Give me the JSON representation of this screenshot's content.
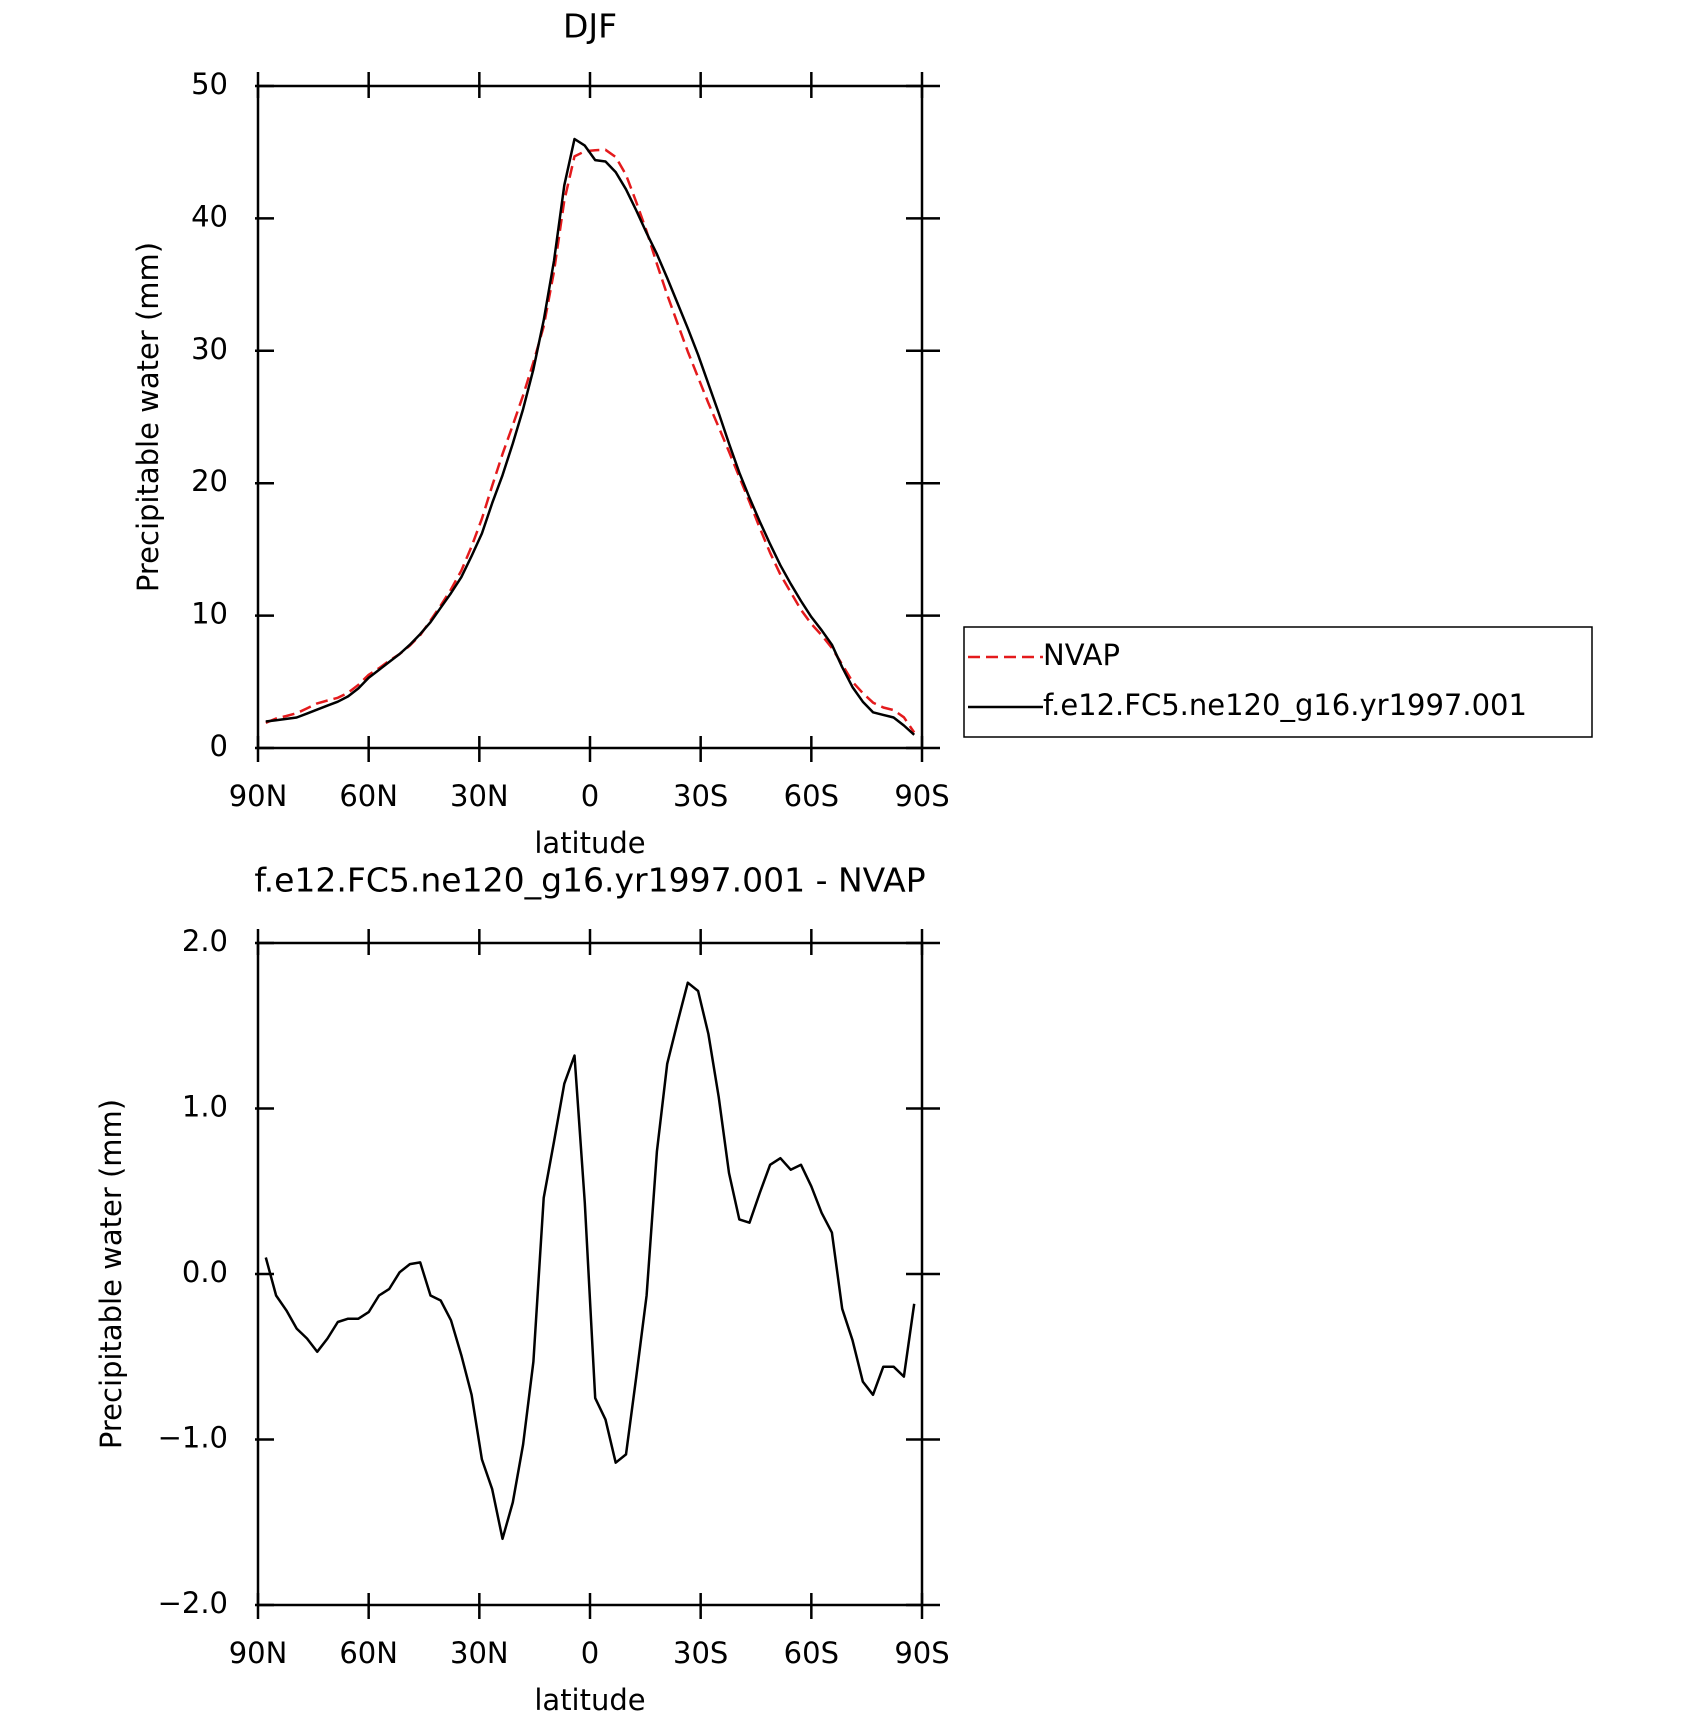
{
  "chart_data": [
    {
      "type": "line",
      "title": "DJF",
      "xlabel": "latitude",
      "ylabel": "Precipitable water (mm)",
      "x": [
        87.89,
        85.1,
        82.31,
        79.52,
        76.73,
        73.94,
        71.15,
        68.36,
        65.57,
        62.78,
        59.99,
        57.2,
        54.41,
        51.62,
        48.83,
        46.04,
        43.25,
        40.46,
        37.67,
        34.88,
        32.09,
        29.3,
        26.51,
        23.72,
        20.93,
        18.14,
        15.35,
        12.56,
        9.77,
        6.98,
        4.19,
        1.4,
        -1.4,
        -4.19,
        -6.98,
        -9.77,
        -12.56,
        -15.35,
        -18.14,
        -20.93,
        -23.72,
        -26.51,
        -29.3,
        -32.09,
        -34.88,
        -37.67,
        -40.46,
        -43.25,
        -46.04,
        -48.83,
        -51.62,
        -54.41,
        -57.2,
        -59.99,
        -62.78,
        -65.57,
        -68.36,
        -71.15,
        -73.94,
        -76.73,
        -79.52,
        -82.31,
        -85.1,
        -87.89
      ],
      "series": [
        {
          "name": "NVAP",
          "color": "#e41a1c",
          "dashed": true,
          "values": [
            1.9,
            2.23,
            2.42,
            2.63,
            2.99,
            3.37,
            3.59,
            3.79,
            4.17,
            4.77,
            5.53,
            6.03,
            6.59,
            7.09,
            7.74,
            8.53,
            9.63,
            10.76,
            11.98,
            13.39,
            15.23,
            17.32,
            19.8,
            22.2,
            24.38,
            26.63,
            29.13,
            31.84,
            36.0,
            41.35,
            44.68,
            45.07,
            45.15,
            45.18,
            44.64,
            43.29,
            41.22,
            39.03,
            36.56,
            34.23,
            32.08,
            29.94,
            27.99,
            26.05,
            24.23,
            22.39,
            20.47,
            18.59,
            16.61,
            14.74,
            13.1,
            11.77,
            10.44,
            9.37,
            8.53,
            7.55,
            6.31,
            5.0,
            4.15,
            3.43,
            3.06,
            2.86,
            2.32,
            1.18
          ]
        },
        {
          "name": "f.e12.FC5.ne120_g16.yr1997.001",
          "color": "#000000",
          "dashed": false,
          "values": [
            2.0,
            2.1,
            2.2,
            2.3,
            2.6,
            2.9,
            3.2,
            3.5,
            3.9,
            4.5,
            5.3,
            5.9,
            6.5,
            7.1,
            7.8,
            8.6,
            9.5,
            10.6,
            11.7,
            12.9,
            14.5,
            16.2,
            18.5,
            20.6,
            23.0,
            25.6,
            28.6,
            32.3,
            36.8,
            42.5,
            46.0,
            45.5,
            44.4,
            44.3,
            43.5,
            42.2,
            40.6,
            38.9,
            37.3,
            35.5,
            33.6,
            31.7,
            29.7,
            27.5,
            25.3,
            23.0,
            20.8,
            18.9,
            17.1,
            15.4,
            13.8,
            12.4,
            11.1,
            9.9,
            8.9,
            7.8,
            6.1,
            4.6,
            3.5,
            2.7,
            2.5,
            2.3,
            1.7,
            1.0
          ]
        }
      ],
      "xlim": [
        90,
        -90
      ],
      "xticks": [
        {
          "value": 90,
          "label": "90N"
        },
        {
          "value": 60,
          "label": "60N"
        },
        {
          "value": 30,
          "label": "30N"
        },
        0,
        {
          "value": -30,
          "label": "30S"
        },
        {
          "value": -60,
          "label": "60S"
        },
        {
          "value": -90,
          "label": "90S"
        }
      ],
      "ylim": [
        0,
        50
      ],
      "yticks": [
        0,
        10,
        20,
        30,
        40,
        50
      ],
      "legend": true
    },
    {
      "type": "line",
      "title": "f.e12.FC5.ne120_g16.yr1997.001 - NVAP",
      "xlabel": "latitude",
      "ylabel": "Precipitable water (mm)",
      "x": [
        87.89,
        85.1,
        82.31,
        79.52,
        76.73,
        73.94,
        71.15,
        68.36,
        65.57,
        62.78,
        59.99,
        57.2,
        54.41,
        51.62,
        48.83,
        46.04,
        43.25,
        40.46,
        37.67,
        34.88,
        32.09,
        29.3,
        26.51,
        23.72,
        20.93,
        18.14,
        15.35,
        12.56,
        9.77,
        6.98,
        4.19,
        1.4,
        -1.4,
        -4.19,
        -6.98,
        -9.77,
        -12.56,
        -15.35,
        -18.14,
        -20.93,
        -23.72,
        -26.51,
        -29.3,
        -32.09,
        -34.88,
        -37.67,
        -40.46,
        -43.25,
        -46.04,
        -48.83,
        -51.62,
        -54.41,
        -57.2,
        -59.99,
        -62.78,
        -65.57,
        -68.36,
        -71.15,
        -73.94,
        -76.73,
        -79.52,
        -82.31,
        -85.1,
        -87.89
      ],
      "series": [
        {
          "color": "#000000",
          "dashed": false,
          "values": [
            0.1,
            -0.13,
            -0.22,
            -0.33,
            -0.39,
            -0.47,
            -0.39,
            -0.29,
            -0.27,
            -0.27,
            -0.23,
            -0.13,
            -0.09,
            0.01,
            0.06,
            0.07,
            -0.13,
            -0.16,
            -0.28,
            -0.49,
            -0.73,
            -1.12,
            -1.3,
            -1.6,
            -1.38,
            -1.03,
            -0.53,
            0.46,
            0.8,
            1.15,
            1.32,
            0.43,
            -0.75,
            -0.88,
            -1.14,
            -1.09,
            -0.62,
            -0.13,
            0.74,
            1.27,
            1.52,
            1.76,
            1.71,
            1.45,
            1.07,
            0.61,
            0.33,
            0.31,
            0.49,
            0.66,
            0.7,
            0.63,
            0.66,
            0.53,
            0.37,
            0.25,
            -0.21,
            -0.4,
            -0.65,
            -0.73,
            -0.56,
            -0.56,
            -0.62,
            -0.18
          ]
        }
      ],
      "xlim": [
        90,
        -90
      ],
      "xticks": [
        {
          "value": 90,
          "label": "90N"
        },
        {
          "value": 60,
          "label": "60N"
        },
        {
          "value": 30,
          "label": "30N"
        },
        0,
        {
          "value": -30,
          "label": "30S"
        },
        {
          "value": -60,
          "label": "60S"
        },
        {
          "value": -90,
          "label": "90S"
        }
      ],
      "ylim": [
        -2,
        2
      ],
      "yticks": [
        {
          "value": -2,
          "label": "−2.0"
        },
        {
          "value": -1,
          "label": "−1.0"
        },
        {
          "value": 0,
          "label": "0.0"
        },
        {
          "value": 1,
          "label": "1.0"
        },
        {
          "value": 2,
          "label": "2.0"
        }
      ],
      "legend": false
    }
  ]
}
